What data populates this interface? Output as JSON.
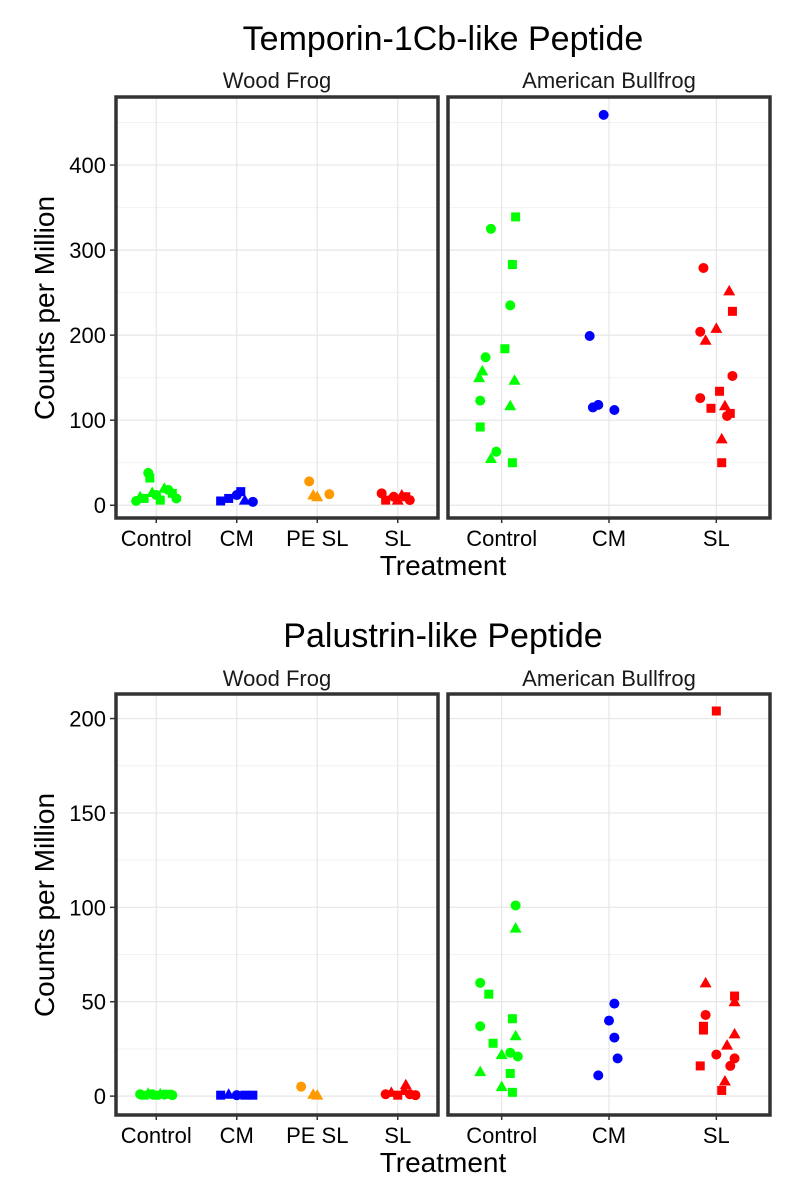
{
  "chart_data": [
    {
      "type": "scatter",
      "title": "Temporin-1Cb-like Peptide",
      "xlabel": "Treatment",
      "ylabel": "Counts per Million",
      "ylim": [
        -15,
        480
      ],
      "yticks": [
        0,
        100,
        200,
        300,
        400
      ],
      "grid": true,
      "colors": {
        "Control": "#00ff00",
        "CM": "#0000ff",
        "PE SL": "#ff9900",
        "SL": "#ff0000"
      },
      "facets": [
        {
          "name": "Wood Frog",
          "categories": [
            "Control",
            "CM",
            "PE SL",
            "SL"
          ],
          "points": [
            {
              "g": "Control",
              "dx": -0.25,
              "y": 5,
              "s": "circle"
            },
            {
              "g": "Control",
              "dx": -0.2,
              "y": 10,
              "s": "triangle"
            },
            {
              "g": "Control",
              "dx": -0.15,
              "y": 8,
              "s": "square"
            },
            {
              "g": "Control",
              "dx": -0.1,
              "y": 38,
              "s": "circle"
            },
            {
              "g": "Control",
              "dx": -0.08,
              "y": 32,
              "s": "square"
            },
            {
              "g": "Control",
              "dx": -0.05,
              "y": 15,
              "s": "triangle"
            },
            {
              "g": "Control",
              "dx": 0.0,
              "y": 12,
              "s": "circle"
            },
            {
              "g": "Control",
              "dx": 0.05,
              "y": 6,
              "s": "square"
            },
            {
              "g": "Control",
              "dx": 0.1,
              "y": 20,
              "s": "triangle"
            },
            {
              "g": "Control",
              "dx": 0.15,
              "y": 18,
              "s": "circle"
            },
            {
              "g": "Control",
              "dx": 0.2,
              "y": 14,
              "s": "square"
            },
            {
              "g": "Control",
              "dx": 0.25,
              "y": 8,
              "s": "circle"
            },
            {
              "g": "CM",
              "dx": -0.2,
              "y": 5,
              "s": "square"
            },
            {
              "g": "CM",
              "dx": -0.1,
              "y": 8,
              "s": "square"
            },
            {
              "g": "CM",
              "dx": 0.0,
              "y": 12,
              "s": "circle"
            },
            {
              "g": "CM",
              "dx": 0.05,
              "y": 16,
              "s": "square"
            },
            {
              "g": "CM",
              "dx": 0.1,
              "y": 6,
              "s": "triangle"
            },
            {
              "g": "CM",
              "dx": 0.2,
              "y": 4,
              "s": "circle"
            },
            {
              "g": "PE SL",
              "dx": -0.1,
              "y": 28,
              "s": "circle"
            },
            {
              "g": "PE SL",
              "dx": -0.05,
              "y": 12,
              "s": "triangle"
            },
            {
              "g": "PE SL",
              "dx": 0.0,
              "y": 10,
              "s": "triangle"
            },
            {
              "g": "PE SL",
              "dx": 0.15,
              "y": 13,
              "s": "circle"
            },
            {
              "g": "SL",
              "dx": -0.2,
              "y": 14,
              "s": "circle"
            },
            {
              "g": "SL",
              "dx": -0.15,
              "y": 6,
              "s": "square"
            },
            {
              "g": "SL",
              "dx": -0.05,
              "y": 10,
              "s": "circle"
            },
            {
              "g": "SL",
              "dx": 0.0,
              "y": 6,
              "s": "triangle"
            },
            {
              "g": "SL",
              "dx": 0.05,
              "y": 12,
              "s": "triangle"
            },
            {
              "g": "SL",
              "dx": 0.1,
              "y": 10,
              "s": "square"
            },
            {
              "g": "SL",
              "dx": 0.15,
              "y": 6,
              "s": "circle"
            }
          ]
        },
        {
          "name": "American Bullfrog",
          "categories": [
            "Control",
            "CM",
            "SL"
          ],
          "points": [
            {
              "g": "Control",
              "dx": -0.1,
              "y": 325,
              "s": "circle"
            },
            {
              "g": "Control",
              "dx": 0.13,
              "y": 339,
              "s": "square"
            },
            {
              "g": "Control",
              "dx": 0.1,
              "y": 283,
              "s": "square"
            },
            {
              "g": "Control",
              "dx": 0.08,
              "y": 235,
              "s": "circle"
            },
            {
              "g": "Control",
              "dx": 0.03,
              "y": 184,
              "s": "square"
            },
            {
              "g": "Control",
              "dx": -0.15,
              "y": 174,
              "s": "circle"
            },
            {
              "g": "Control",
              "dx": -0.18,
              "y": 158,
              "s": "triangle"
            },
            {
              "g": "Control",
              "dx": -0.21,
              "y": 150,
              "s": "triangle"
            },
            {
              "g": "Control",
              "dx": 0.12,
              "y": 147,
              "s": "triangle"
            },
            {
              "g": "Control",
              "dx": -0.2,
              "y": 123,
              "s": "circle"
            },
            {
              "g": "Control",
              "dx": 0.08,
              "y": 117,
              "s": "triangle"
            },
            {
              "g": "Control",
              "dx": -0.2,
              "y": 92,
              "s": "square"
            },
            {
              "g": "Control",
              "dx": -0.05,
              "y": 63,
              "s": "circle"
            },
            {
              "g": "Control",
              "dx": -0.1,
              "y": 55,
              "s": "triangle"
            },
            {
              "g": "Control",
              "dx": 0.1,
              "y": 50,
              "s": "square"
            },
            {
              "g": "CM",
              "dx": -0.05,
              "y": 459,
              "s": "circle"
            },
            {
              "g": "CM",
              "dx": -0.18,
              "y": 199,
              "s": "circle"
            },
            {
              "g": "CM",
              "dx": -0.15,
              "y": 115,
              "s": "circle"
            },
            {
              "g": "CM",
              "dx": -0.1,
              "y": 118,
              "s": "circle"
            },
            {
              "g": "CM",
              "dx": 0.05,
              "y": 112,
              "s": "circle"
            },
            {
              "g": "SL",
              "dx": -0.12,
              "y": 279,
              "s": "circle"
            },
            {
              "g": "SL",
              "dx": 0.12,
              "y": 252,
              "s": "triangle"
            },
            {
              "g": "SL",
              "dx": 0.15,
              "y": 228,
              "s": "square"
            },
            {
              "g": "SL",
              "dx": 0.0,
              "y": 208,
              "s": "triangle"
            },
            {
              "g": "SL",
              "dx": -0.15,
              "y": 204,
              "s": "circle"
            },
            {
              "g": "SL",
              "dx": -0.1,
              "y": 194,
              "s": "triangle"
            },
            {
              "g": "SL",
              "dx": 0.15,
              "y": 152,
              "s": "circle"
            },
            {
              "g": "SL",
              "dx": 0.03,
              "y": 134,
              "s": "square"
            },
            {
              "g": "SL",
              "dx": -0.15,
              "y": 126,
              "s": "circle"
            },
            {
              "g": "SL",
              "dx": 0.08,
              "y": 117,
              "s": "triangle"
            },
            {
              "g": "SL",
              "dx": -0.05,
              "y": 114,
              "s": "square"
            },
            {
              "g": "SL",
              "dx": 0.13,
              "y": 108,
              "s": "square"
            },
            {
              "g": "SL",
              "dx": 0.1,
              "y": 105,
              "s": "circle"
            },
            {
              "g": "SL",
              "dx": 0.05,
              "y": 78,
              "s": "triangle"
            },
            {
              "g": "SL",
              "dx": 0.05,
              "y": 50,
              "s": "square"
            }
          ]
        }
      ]
    },
    {
      "type": "scatter",
      "title": "Palustrin-like Peptide",
      "xlabel": "Treatment",
      "ylabel": "Counts per Million",
      "ylim": [
        -10,
        213
      ],
      "yticks": [
        0,
        50,
        100,
        150,
        200
      ],
      "grid": true,
      "colors": {
        "Control": "#00ff00",
        "CM": "#0000ff",
        "PE SL": "#ff9900",
        "SL": "#ff0000"
      },
      "facets": [
        {
          "name": "Wood Frog",
          "categories": [
            "Control",
            "CM",
            "PE SL",
            "SL"
          ],
          "points": [
            {
              "g": "Control",
              "dx": -0.2,
              "y": 1,
              "s": "circle"
            },
            {
              "g": "Control",
              "dx": -0.15,
              "y": 0.5,
              "s": "square"
            },
            {
              "g": "Control",
              "dx": -0.1,
              "y": 1.5,
              "s": "triangle"
            },
            {
              "g": "Control",
              "dx": -0.05,
              "y": 1,
              "s": "circle"
            },
            {
              "g": "Control",
              "dx": 0.0,
              "y": 0.5,
              "s": "square"
            },
            {
              "g": "Control",
              "dx": 0.05,
              "y": 1.2,
              "s": "triangle"
            },
            {
              "g": "Control",
              "dx": 0.1,
              "y": 0.8,
              "s": "circle"
            },
            {
              "g": "Control",
              "dx": 0.15,
              "y": 1,
              "s": "square"
            },
            {
              "g": "Control",
              "dx": 0.2,
              "y": 0.5,
              "s": "circle"
            },
            {
              "g": "CM",
              "dx": -0.2,
              "y": 0.5,
              "s": "square"
            },
            {
              "g": "CM",
              "dx": -0.1,
              "y": 1,
              "s": "triangle"
            },
            {
              "g": "CM",
              "dx": 0.0,
              "y": 0.5,
              "s": "circle"
            },
            {
              "g": "CM",
              "dx": 0.1,
              "y": 0.5,
              "s": "square"
            },
            {
              "g": "CM",
              "dx": 0.2,
              "y": 0.5,
              "s": "square"
            },
            {
              "g": "PE SL",
              "dx": -0.2,
              "y": 5,
              "s": "circle"
            },
            {
              "g": "PE SL",
              "dx": -0.05,
              "y": 1,
              "s": "triangle"
            },
            {
              "g": "PE SL",
              "dx": 0.0,
              "y": 0.5,
              "s": "triangle"
            },
            {
              "g": "SL",
              "dx": -0.15,
              "y": 1,
              "s": "circle"
            },
            {
              "g": "SL",
              "dx": -0.08,
              "y": 2,
              "s": "triangle"
            },
            {
              "g": "SL",
              "dx": 0.0,
              "y": 0.5,
              "s": "square"
            },
            {
              "g": "SL",
              "dx": 0.08,
              "y": 3,
              "s": "triangle"
            },
            {
              "g": "SL",
              "dx": 0.1,
              "y": 6,
              "s": "triangle"
            },
            {
              "g": "SL",
              "dx": 0.15,
              "y": 1,
              "s": "circle"
            },
            {
              "g": "SL",
              "dx": 0.22,
              "y": 0.5,
              "s": "circle"
            }
          ]
        },
        {
          "name": "American Bullfrog",
          "categories": [
            "Control",
            "CM",
            "SL"
          ],
          "points": [
            {
              "g": "Control",
              "dx": 0.13,
              "y": 101,
              "s": "circle"
            },
            {
              "g": "Control",
              "dx": 0.13,
              "y": 89,
              "s": "triangle"
            },
            {
              "g": "Control",
              "dx": -0.2,
              "y": 60,
              "s": "circle"
            },
            {
              "g": "Control",
              "dx": -0.12,
              "y": 54,
              "s": "square"
            },
            {
              "g": "Control",
              "dx": 0.1,
              "y": 41,
              "s": "square"
            },
            {
              "g": "Control",
              "dx": -0.2,
              "y": 37,
              "s": "circle"
            },
            {
              "g": "Control",
              "dx": 0.13,
              "y": 32,
              "s": "triangle"
            },
            {
              "g": "Control",
              "dx": -0.08,
              "y": 28,
              "s": "square"
            },
            {
              "g": "Control",
              "dx": 0.08,
              "y": 23,
              "s": "circle"
            },
            {
              "g": "Control",
              "dx": 0.0,
              "y": 22,
              "s": "triangle"
            },
            {
              "g": "Control",
              "dx": 0.15,
              "y": 21,
              "s": "circle"
            },
            {
              "g": "Control",
              "dx": -0.2,
              "y": 13,
              "s": "triangle"
            },
            {
              "g": "Control",
              "dx": 0.08,
              "y": 12,
              "s": "square"
            },
            {
              "g": "Control",
              "dx": 0.0,
              "y": 5,
              "s": "triangle"
            },
            {
              "g": "Control",
              "dx": 0.1,
              "y": 2,
              "s": "square"
            },
            {
              "g": "CM",
              "dx": 0.05,
              "y": 49,
              "s": "circle"
            },
            {
              "g": "CM",
              "dx": 0.0,
              "y": 40,
              "s": "circle"
            },
            {
              "g": "CM",
              "dx": 0.05,
              "y": 31,
              "s": "circle"
            },
            {
              "g": "CM",
              "dx": 0.08,
              "y": 20,
              "s": "circle"
            },
            {
              "g": "CM",
              "dx": -0.1,
              "y": 11,
              "s": "circle"
            },
            {
              "g": "SL",
              "dx": 0.0,
              "y": 204,
              "s": "square"
            },
            {
              "g": "SL",
              "dx": -0.1,
              "y": 60,
              "s": "triangle"
            },
            {
              "g": "SL",
              "dx": 0.17,
              "y": 53,
              "s": "square"
            },
            {
              "g": "SL",
              "dx": 0.17,
              "y": 50,
              "s": "triangle"
            },
            {
              "g": "SL",
              "dx": -0.1,
              "y": 43,
              "s": "circle"
            },
            {
              "g": "SL",
              "dx": -0.12,
              "y": 37,
              "s": "square"
            },
            {
              "g": "SL",
              "dx": -0.12,
              "y": 35,
              "s": "square"
            },
            {
              "g": "SL",
              "dx": 0.17,
              "y": 33,
              "s": "triangle"
            },
            {
              "g": "SL",
              "dx": 0.1,
              "y": 27,
              "s": "triangle"
            },
            {
              "g": "SL",
              "dx": 0.0,
              "y": 22,
              "s": "circle"
            },
            {
              "g": "SL",
              "dx": 0.17,
              "y": 20,
              "s": "circle"
            },
            {
              "g": "SL",
              "dx": 0.13,
              "y": 16,
              "s": "circle"
            },
            {
              "g": "SL",
              "dx": -0.15,
              "y": 16,
              "s": "square"
            },
            {
              "g": "SL",
              "dx": 0.08,
              "y": 8,
              "s": "triangle"
            },
            {
              "g": "SL",
              "dx": 0.05,
              "y": 3,
              "s": "square"
            }
          ]
        }
      ]
    }
  ]
}
